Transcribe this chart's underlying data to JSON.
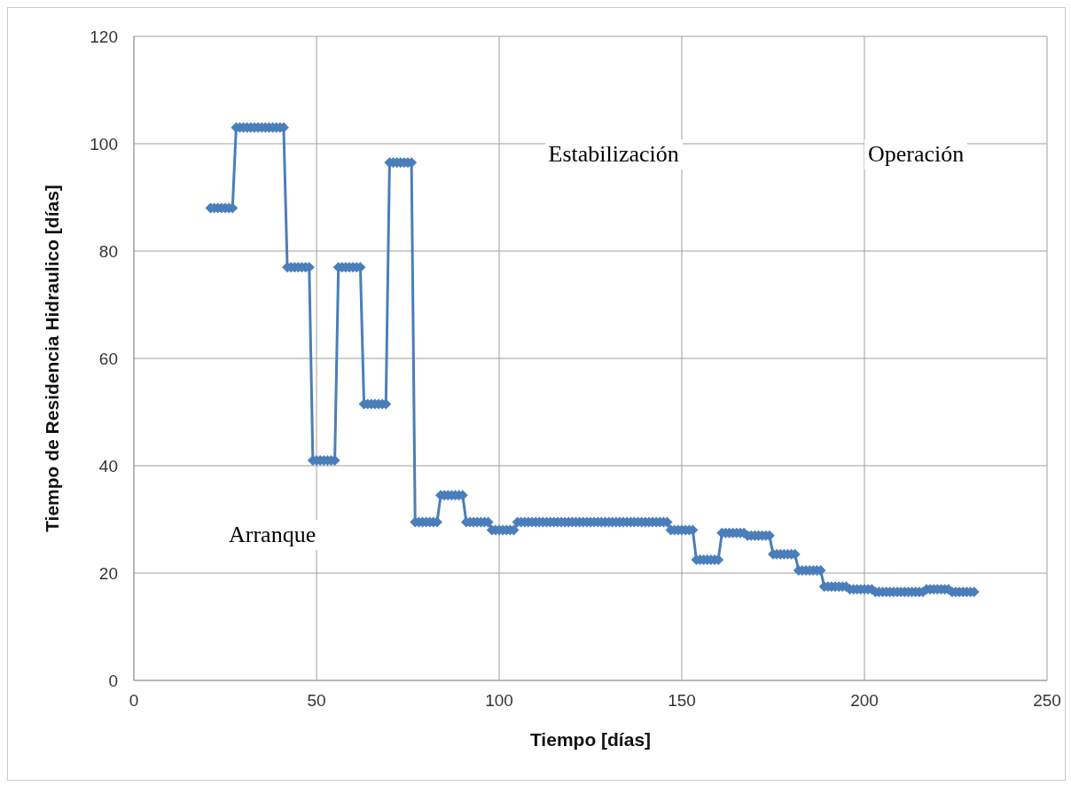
{
  "chart_data": {
    "type": "line",
    "xlabel": "Tiempo [días]",
    "ylabel": "Tiempo de Residencia Hidraulico [días]",
    "annotations": [
      "Arranque",
      "Estabilización",
      "Operación"
    ],
    "x": [
      21,
      22,
      23,
      24,
      25,
      26,
      27,
      28,
      29,
      30,
      31,
      32,
      33,
      34,
      35,
      36,
      37,
      38,
      39,
      40,
      41,
      42,
      43,
      44,
      45,
      46,
      47,
      48,
      49,
      50,
      51,
      52,
      53,
      54,
      55,
      56,
      57,
      58,
      59,
      60,
      61,
      62,
      63,
      64,
      65,
      66,
      67,
      68,
      69,
      70,
      71,
      72,
      73,
      74,
      75,
      76,
      77,
      78,
      79,
      80,
      81,
      82,
      83,
      84,
      85,
      86,
      87,
      88,
      89,
      90,
      91,
      92,
      93,
      94,
      95,
      96,
      97,
      98,
      99,
      100,
      101,
      102,
      103,
      104,
      105,
      106,
      107,
      108,
      109,
      110,
      111,
      112,
      113,
      114,
      115,
      116,
      117,
      118,
      119,
      120,
      121,
      122,
      123,
      124,
      125,
      126,
      127,
      128,
      129,
      130,
      131,
      132,
      133,
      134,
      135,
      136,
      137,
      138,
      139,
      140,
      141,
      142,
      143,
      144,
      145,
      146,
      147,
      148,
      149,
      150,
      151,
      152,
      153,
      154,
      155,
      156,
      157,
      158,
      159,
      160,
      161,
      162,
      163,
      164,
      165,
      166,
      167,
      168,
      169,
      170,
      171,
      172,
      173,
      174,
      175,
      176,
      177,
      178,
      179,
      180,
      181,
      182,
      183,
      184,
      185,
      186,
      187,
      188,
      189,
      190,
      191,
      192,
      193,
      194,
      195,
      196,
      197,
      198,
      199,
      200,
      201,
      202,
      203,
      204,
      205,
      206,
      207,
      208,
      209,
      210,
      211,
      212,
      213,
      214,
      215,
      216,
      217,
      218,
      219,
      220,
      221,
      222,
      223,
      224,
      225,
      226,
      227,
      228,
      229,
      230
    ],
    "series": [
      {
        "color": "#4a7ebb",
        "values": [
          88,
          88,
          88,
          88,
          88,
          88,
          88,
          103,
          103,
          103,
          103,
          103,
          103,
          103,
          103,
          103,
          103,
          103,
          103,
          103,
          103,
          77,
          77,
          77,
          77,
          77,
          77,
          77,
          41,
          41,
          41,
          41,
          41,
          41,
          41,
          77,
          77,
          77,
          77,
          77,
          77,
          77,
          51.5,
          51.5,
          51.5,
          51.5,
          51.5,
          51.5,
          51.5,
          96.5,
          96.5,
          96.5,
          96.5,
          96.5,
          96.5,
          96.5,
          29.5,
          29.5,
          29.5,
          29.5,
          29.5,
          29.5,
          29.5,
          34.5,
          34.5,
          34.5,
          34.5,
          34.5,
          34.5,
          34.5,
          29.5,
          29.5,
          29.5,
          29.5,
          29.5,
          29.5,
          29.5,
          28,
          28,
          28,
          28,
          28,
          28,
          28,
          29.5,
          29.5,
          29.5,
          29.5,
          29.5,
          29.5,
          29.5,
          29.5,
          29.5,
          29.5,
          29.5,
          29.5,
          29.5,
          29.5,
          29.5,
          29.5,
          29.5,
          29.5,
          29.5,
          29.5,
          29.5,
          29.5,
          29.5,
          29.5,
          29.5,
          29.5,
          29.5,
          29.5,
          29.5,
          29.5,
          29.5,
          29.5,
          29.5,
          29.5,
          29.5,
          29.5,
          29.5,
          29.5,
          29.5,
          29.5,
          29.5,
          29.5,
          28,
          28,
          28,
          28,
          28,
          28,
          28,
          22.5,
          22.5,
          22.5,
          22.5,
          22.5,
          22.5,
          22.5,
          27.5,
          27.5,
          27.5,
          27.5,
          27.5,
          27.5,
          27.5,
          27,
          27,
          27,
          27,
          27,
          27,
          27,
          23.5,
          23.5,
          23.5,
          23.5,
          23.5,
          23.5,
          23.5,
          20.5,
          20.5,
          20.5,
          20.5,
          20.5,
          20.5,
          20.5,
          17.5,
          17.5,
          17.5,
          17.5,
          17.5,
          17.5,
          17.5,
          17,
          17,
          17,
          17,
          17,
          17,
          17,
          16.5,
          16.5,
          16.5,
          16.5,
          16.5,
          16.5,
          16.5,
          16.5,
          16.5,
          16.5,
          16.5,
          16.5,
          16.5,
          16.5,
          17,
          17,
          17,
          17,
          17,
          17,
          17,
          16.5,
          16.5,
          16.5,
          16.5,
          16.5,
          16.5,
          16.5
        ]
      }
    ],
    "xlim": [
      0,
      250
    ],
    "xticks": [
      0,
      50,
      100,
      150,
      200,
      250
    ],
    "ylim": [
      0,
      120
    ],
    "yticks": [
      0,
      20,
      40,
      60,
      80,
      100,
      120
    ],
    "grid": true,
    "marker": "diamond",
    "line_style": "solid"
  }
}
